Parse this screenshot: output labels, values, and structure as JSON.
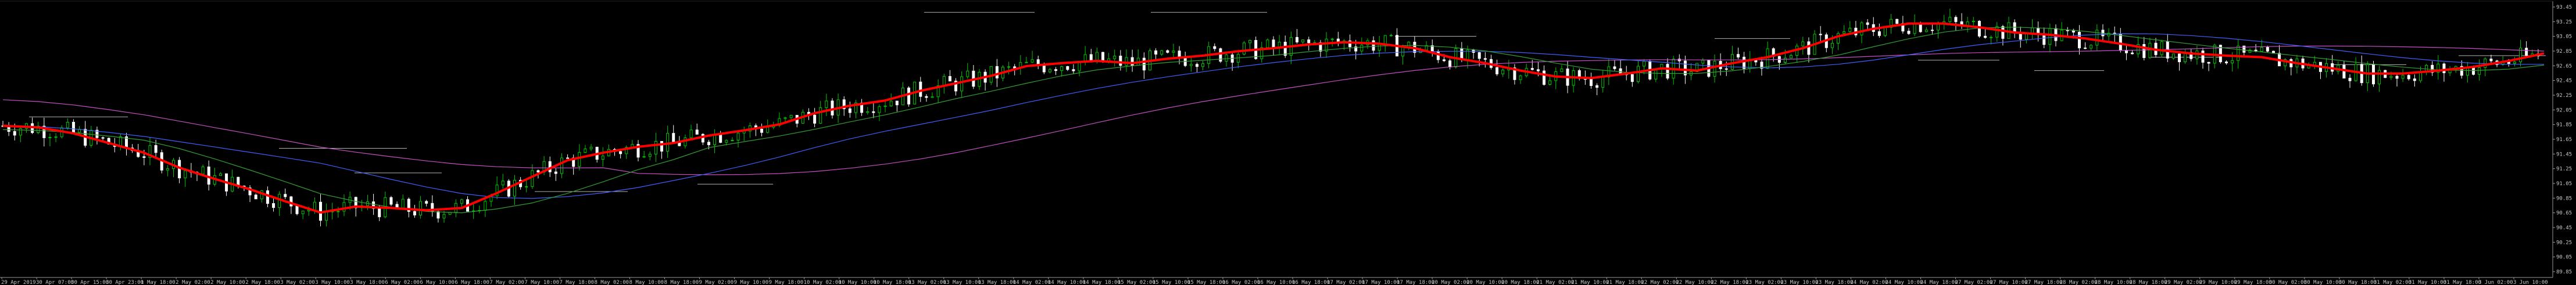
{
  "chart_data": {
    "type": "candlestick",
    "title": "",
    "xlabel": "",
    "ylabel": "",
    "grid": false,
    "colors": {
      "background": "#000000",
      "axes": "#9a9a9a",
      "candle_up": "#00c800",
      "candle_down": "#ffffff",
      "ma_main": "#ff0000",
      "ma_slow": "#c850c8",
      "ma_mid": "#4060ff",
      "ma_fast": "#32a032",
      "levels": "#b4b4b4"
    },
    "ylim": [
      92.15,
      95.85
    ],
    "y_ticks": [
      "93.45",
      "93.25",
      "93.05",
      "92.85",
      "92.65",
      "92.45",
      "92.25",
      "92.05",
      "91.85",
      "91.65",
      "91.45",
      "91.25",
      "91.05",
      "90.85",
      "90.65",
      "90.45",
      "90.25",
      "90.05",
      "89.85"
    ],
    "x_ticks": [
      "29 Apr 2019",
      "30 Apr 07:00",
      "30 Apr 15:00",
      "30 Apr 23:00",
      "1 May 18:00",
      "2 May 02:00",
      "2 May 10:00",
      "2 May 18:00",
      "3 May 02:00",
      "3 May 10:00",
      "3 May 18:00",
      "6 May 02:00",
      "6 May 10:00",
      "6 May 18:00",
      "7 May 02:00",
      "7 May 10:00",
      "7 May 18:00",
      "8 May 02:00",
      "8 May 10:00",
      "8 May 18:00",
      "9 May 02:00",
      "9 May 10:00",
      "9 May 18:00",
      "10 May 02:00",
      "10 May 10:00",
      "10 May 18:00",
      "13 May 02:00",
      "13 May 10:00",
      "13 May 18:00",
      "14 May 02:00",
      "14 May 10:00",
      "14 May 18:00",
      "15 May 02:00",
      "15 May 10:00",
      "15 May 18:00",
      "16 May 02:00",
      "16 May 10:00",
      "16 May 18:00",
      "17 May 02:00",
      "17 May 10:00",
      "17 May 18:00",
      "20 May 02:00",
      "20 May 10:00",
      "20 May 18:00",
      "21 May 02:00",
      "21 May 10:00",
      "21 May 18:00",
      "22 May 02:00",
      "22 May 10:00",
      "22 May 18:00",
      "23 May 02:00",
      "23 May 10:00",
      "23 May 18:00",
      "24 May 02:00",
      "24 May 10:00",
      "24 May 18:00",
      "27 May 02:00",
      "27 May 10:00",
      "27 May 18:00",
      "28 May 02:00",
      "28 May 10:00",
      "28 May 18:00",
      "29 May 02:00",
      "29 May 10:00",
      "29 May 18:00",
      "30 May 02:00",
      "30 May 10:00",
      "30 May 18:00",
      "31 May 02:00",
      "31 May 10:00",
      "31 May 18:00",
      "3 Jun 02:00",
      "3 Jun 10:00"
    ],
    "series": [
      {
        "key": "ma_main",
        "values": [
          94.18,
          94.16,
          94.08,
          93.95,
          93.82,
          93.62,
          93.47,
          93.33,
          93.17,
          93.02,
          93.1,
          93.08,
          93.05,
          93.08,
          93.28,
          93.5,
          93.72,
          93.82,
          93.9,
          93.95,
          94.05,
          94.12,
          94.2,
          94.35,
          94.45,
          94.52,
          94.65,
          94.75,
          94.85,
          94.98,
          95.02,
          95.05,
          95.02,
          95.08,
          95.12,
          95.18,
          95.22,
          95.27,
          95.3,
          95.28,
          95.22,
          95.1,
          95.02,
          94.92,
          94.84,
          94.82,
          94.88,
          94.95,
          94.92,
          95.02,
          95.1,
          95.22,
          95.38,
          95.48,
          95.55,
          95.55,
          95.5,
          95.43,
          95.4,
          95.35,
          95.28,
          95.2,
          95.15,
          95.12,
          95.1,
          95.02,
          94.95,
          94.88,
          94.88,
          94.92,
          94.97,
          95.05,
          95.15
        ]
      }
    ]
  }
}
